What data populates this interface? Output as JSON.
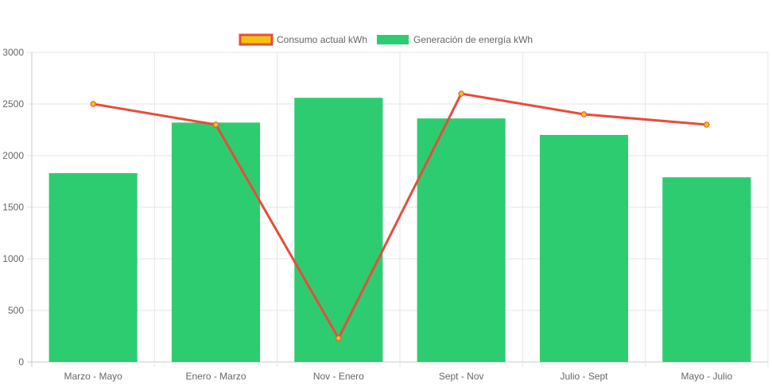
{
  "chart_data": {
    "type": "bar",
    "categories": [
      "Marzo - Mayo",
      "Enero - Marzo",
      "Nov - Enero",
      "Sept - Nov",
      "Julio - Sept",
      "Mayo - Julio"
    ],
    "series": [
      {
        "name": "Consumo actual kWh",
        "type": "line",
        "values": [
          2500,
          2300,
          230,
          2600,
          2400,
          2300
        ],
        "color": "#e74c3c",
        "point_color": "#f1c40f"
      },
      {
        "name": "Generación de energía kWh",
        "type": "bar",
        "values": [
          1830,
          2320,
          2560,
          2360,
          2200,
          1790
        ],
        "color": "#2ecc71"
      }
    ],
    "ylim": [
      0,
      3000
    ],
    "yticks": [
      0,
      500,
      1000,
      1500,
      2000,
      2500,
      3000
    ],
    "grid": true,
    "legend_position": "top-center"
  }
}
